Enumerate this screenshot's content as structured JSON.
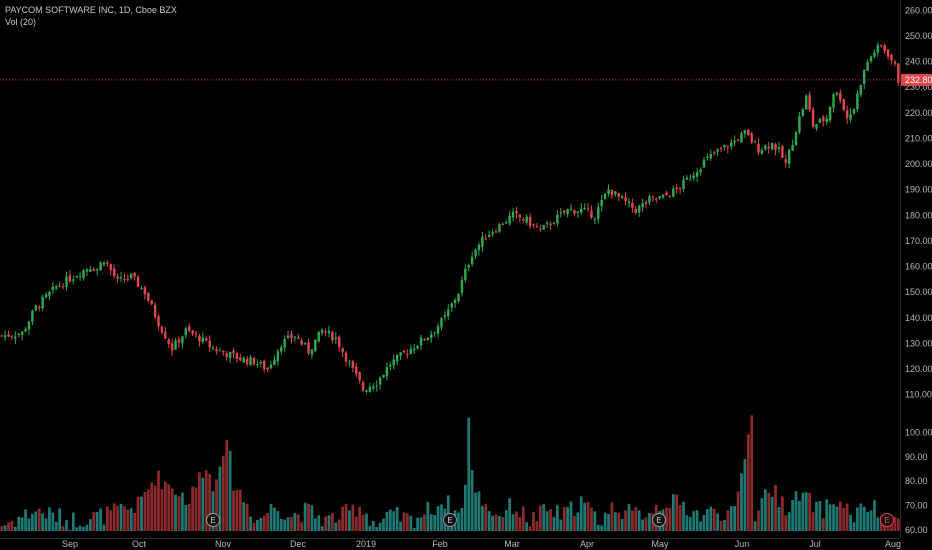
{
  "legend": {
    "title": "PAYCOM SOFTWARE INC, 1D, Cboe BZX",
    "volume_label": "Vol (20)"
  },
  "colors": {
    "up": "#2fa84f",
    "down": "#e0454d",
    "vol_up": "#1f7a74",
    "vol_down": "#8c2a2c",
    "axis_text": "#b8b8b8",
    "price_line": "#e0454d"
  },
  "chart_data": {
    "type": "candlestick",
    "title": "PAYCOM SOFTWARE INC, 1D, Cboe BZX",
    "price_axis": {
      "ylim": [
        104,
        264
      ],
      "ticks": [
        "260.00",
        "250.00",
        "240.00",
        "230.00",
        "220.00",
        "210.00",
        "200.00",
        "190.00",
        "180.00",
        "170.00",
        "160.00",
        "150.00",
        "140.00",
        "130.00",
        "120.00",
        "110.00"
      ]
    },
    "volume_axis": {
      "label": "Vol (20)",
      "ticks": [
        "100.00",
        "90.00",
        "80.00",
        "70.00",
        "60.00"
      ]
    },
    "x_ticks": [
      "Sep",
      "Oct",
      "Nov",
      "Dec",
      "2019",
      "Feb",
      "Mar",
      "Apr",
      "May",
      "Jun",
      "Jul",
      "Aug"
    ],
    "last_price_label": "232.80",
    "last_price": 232.8,
    "earnings_markers": [
      "E",
      "E",
      "E",
      "E"
    ],
    "close_waypoints": [
      [
        0,
        133
      ],
      [
        6,
        134
      ],
      [
        10,
        144
      ],
      [
        16,
        152
      ],
      [
        22,
        157
      ],
      [
        26,
        160
      ],
      [
        28,
        159
      ],
      [
        30,
        163
      ],
      [
        34,
        154
      ],
      [
        38,
        156
      ],
      [
        42,
        150
      ],
      [
        46,
        138
      ],
      [
        50,
        128
      ],
      [
        54,
        135
      ],
      [
        58,
        132
      ],
      [
        62,
        128
      ],
      [
        66,
        126
      ],
      [
        70,
        124
      ],
      [
        74,
        123
      ],
      [
        78,
        120
      ],
      [
        82,
        130
      ],
      [
        86,
        133
      ],
      [
        90,
        127
      ],
      [
        94,
        135
      ],
      [
        98,
        132
      ],
      [
        102,
        122
      ],
      [
        106,
        112
      ],
      [
        110,
        115
      ],
      [
        114,
        122
      ],
      [
        118,
        126
      ],
      [
        122,
        130
      ],
      [
        126,
        134
      ],
      [
        130,
        140
      ],
      [
        134,
        150
      ],
      [
        136,
        158
      ],
      [
        138,
        165
      ],
      [
        142,
        172
      ],
      [
        146,
        176
      ],
      [
        150,
        180
      ],
      [
        154,
        178
      ],
      [
        158,
        174
      ],
      [
        162,
        178
      ],
      [
        166,
        182
      ],
      [
        170,
        182
      ],
      [
        174,
        180
      ],
      [
        178,
        190
      ],
      [
        182,
        186
      ],
      [
        186,
        182
      ],
      [
        190,
        186
      ],
      [
        194,
        187
      ],
      [
        198,
        190
      ],
      [
        202,
        195
      ],
      [
        206,
        201
      ],
      [
        210,
        205
      ],
      [
        214,
        208
      ],
      [
        218,
        212
      ],
      [
        222,
        206
      ],
      [
        226,
        208
      ],
      [
        228,
        205
      ],
      [
        230,
        200
      ],
      [
        234,
        218
      ],
      [
        236,
        226
      ],
      [
        238,
        215
      ],
      [
        242,
        218
      ],
      [
        244,
        228
      ],
      [
        246,
        226
      ],
      [
        248,
        218
      ],
      [
        250,
        222
      ],
      [
        252,
        232
      ],
      [
        254,
        240
      ],
      [
        256,
        244
      ],
      [
        258,
        246
      ],
      [
        260,
        243
      ],
      [
        262,
        238
      ],
      [
        263,
        232.8
      ]
    ],
    "volume_waypoints": [
      [
        0,
        62
      ],
      [
        10,
        68
      ],
      [
        20,
        64
      ],
      [
        30,
        66
      ],
      [
        40,
        70
      ],
      [
        45,
        82
      ],
      [
        50,
        78
      ],
      [
        55,
        72
      ],
      [
        60,
        88
      ],
      [
        62,
        76
      ],
      [
        64,
        90
      ],
      [
        66,
        97
      ],
      [
        68,
        80
      ],
      [
        70,
        75
      ],
      [
        75,
        64
      ],
      [
        80,
        70
      ],
      [
        85,
        66
      ],
      [
        90,
        68
      ],
      [
        95,
        64
      ],
      [
        100,
        66
      ],
      [
        105,
        70
      ],
      [
        110,
        62
      ],
      [
        115,
        66
      ],
      [
        120,
        64
      ],
      [
        125,
        68
      ],
      [
        130,
        72
      ],
      [
        134,
        66
      ],
      [
        136,
        78
      ],
      [
        137,
        106
      ],
      [
        138,
        82
      ],
      [
        140,
        74
      ],
      [
        145,
        66
      ],
      [
        150,
        70
      ],
      [
        155,
        64
      ],
      [
        160,
        68
      ],
      [
        165,
        66
      ],
      [
        170,
        72
      ],
      [
        175,
        64
      ],
      [
        180,
        70
      ],
      [
        185,
        66
      ],
      [
        190,
        68
      ],
      [
        195,
        72
      ],
      [
        200,
        70
      ],
      [
        205,
        66
      ],
      [
        210,
        68
      ],
      [
        215,
        66
      ],
      [
        220,
        107
      ],
      [
        221,
        66
      ],
      [
        225,
        78
      ],
      [
        230,
        70
      ],
      [
        235,
        74
      ],
      [
        240,
        68
      ],
      [
        245,
        72
      ],
      [
        250,
        66
      ],
      [
        255,
        70
      ],
      [
        260,
        62
      ],
      [
        263,
        66
      ]
    ]
  }
}
